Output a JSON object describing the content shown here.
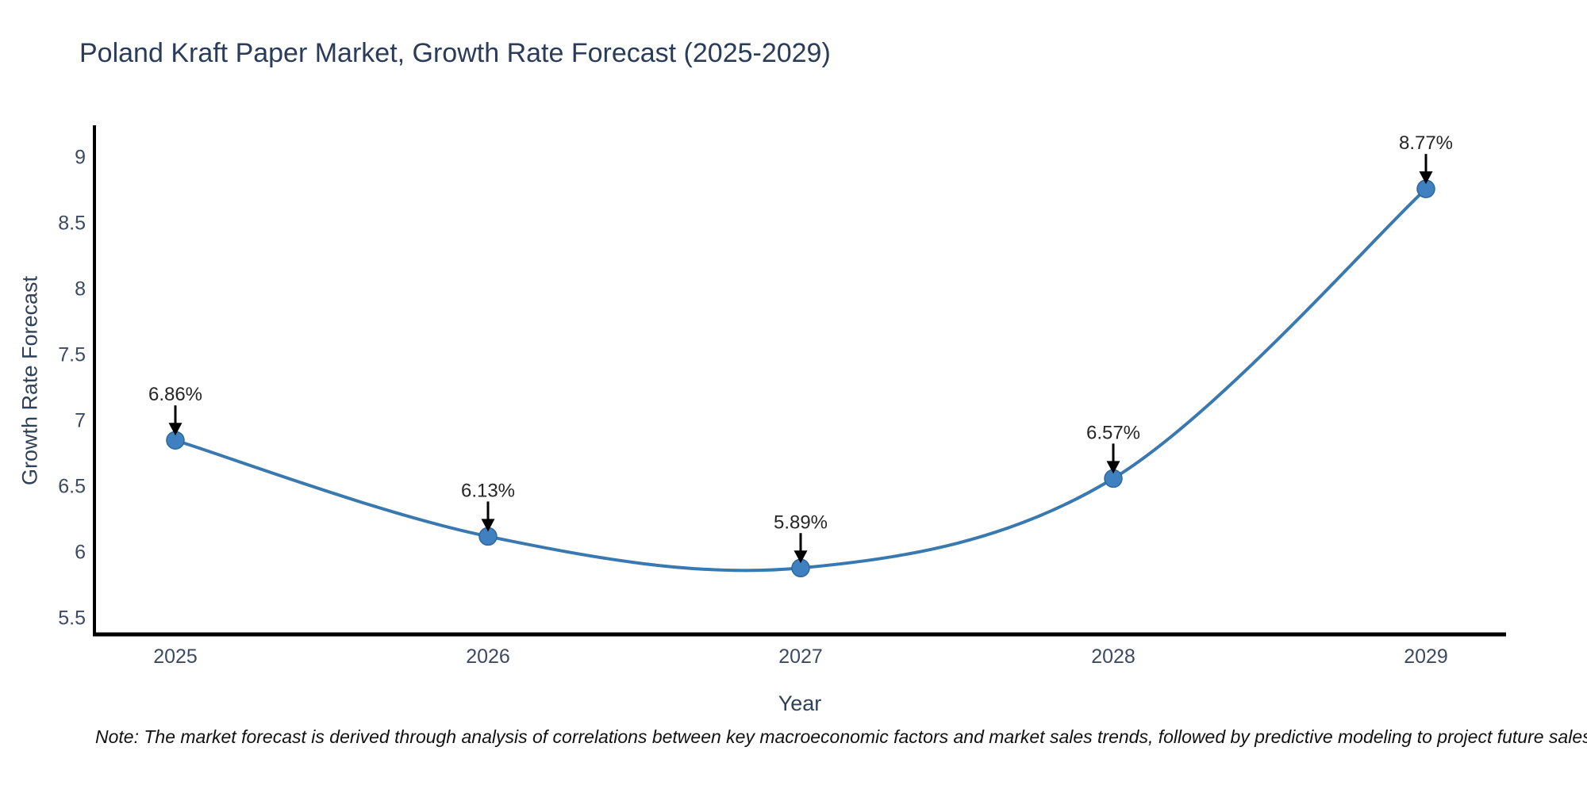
{
  "title": "Poland Kraft Paper Market, Growth Rate Forecast (2025-2029)",
  "note": "Note: The market forecast is derived through analysis of correlations between key macroeconomic factors and market sales trends, followed by predictive modeling to project future sales",
  "chart_data": {
    "type": "line",
    "line_shape": "spline",
    "title": "Poland Kraft Paper Market, Growth Rate Forecast (2025-2029)",
    "xlabel": "Year",
    "ylabel": "Growth Rate Forecast",
    "categories": [
      "2025",
      "2026",
      "2027",
      "2028",
      "2029"
    ],
    "series": [
      {
        "name": "Growth Rate Forecast",
        "values": [
          6.86,
          6.13,
          5.89,
          6.57,
          8.77
        ]
      }
    ],
    "point_labels": [
      "6.86%",
      "6.13%",
      "5.89%",
      "6.57%",
      "8.77%"
    ],
    "yticks": [
      5.5,
      6,
      6.5,
      7,
      7.5,
      8,
      8.5,
      9
    ],
    "ylim": [
      5.4,
      9.25
    ],
    "grid": false,
    "legend_position": "none",
    "annotations_arrow": "down",
    "colors": {
      "line": "#3a78b0",
      "marker": "#3e80c0",
      "marker_edge": "#2e689e",
      "axis": "#000000",
      "tick_text": "#3c4a63",
      "title_text": "#2b3c5a",
      "annotation_text": "#262626",
      "arrow": "#000000"
    }
  }
}
